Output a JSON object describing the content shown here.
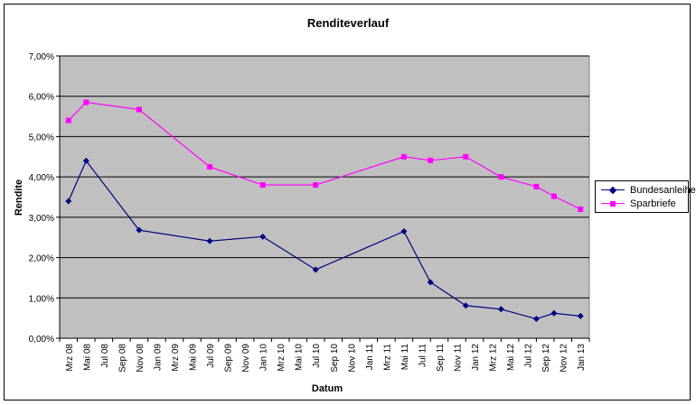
{
  "chart_data": {
    "type": "line",
    "title": "Renditeverlauf",
    "xlabel": "Datum",
    "ylabel": "Rendite",
    "ylim": [
      0,
      0.07
    ],
    "y_ticks": [
      "0,00%",
      "1,00%",
      "2,00%",
      "3,00%",
      "4,00%",
      "5,00%",
      "6,00%",
      "7,00%"
    ],
    "categories": [
      "Mrz 08",
      "Mai 08",
      "Jul 08",
      "Sep 08",
      "Nov 08",
      "Jan 09",
      "Mrz 09",
      "Mai 09",
      "Jul 09",
      "Sep 09",
      "Nov 09",
      "Jan 10",
      "Mrz 10",
      "Mai 10",
      "Jul 10",
      "Sep 10",
      "Nov 10",
      "Jan 11",
      "Mrz 11",
      "Mai 11",
      "Jul 11",
      "Sep 11",
      "Nov 11",
      "Jan 12",
      "Mrz 12",
      "Mai 12",
      "Jul 12",
      "Sep 12",
      "Nov 12",
      "Jan 13"
    ],
    "grid": true,
    "legend": "right",
    "plot_background": "#C0C0C0",
    "series": [
      {
        "name": "Bundesanleihen",
        "color": "#000080",
        "marker": "diamond",
        "points": [
          [
            "Mrz 08",
            0.034
          ],
          [
            "Mai 08",
            0.044
          ],
          [
            "Nov 08",
            0.0268
          ],
          [
            "Jul 09",
            0.0241
          ],
          [
            "Jan 10",
            0.0252
          ],
          [
            "Jul 10",
            0.017
          ],
          [
            "Mai 11",
            0.0265
          ],
          [
            "Aug 11",
            0.0139
          ],
          [
            "Dez 11",
            0.0081
          ],
          [
            "Apr 12",
            0.0072
          ],
          [
            "Aug 12",
            0.0048
          ],
          [
            "Okt 12",
            0.0062
          ],
          [
            "Jan 13",
            0.0055
          ]
        ]
      },
      {
        "name": "Sparbriefe",
        "color": "#FF00FF",
        "marker": "square",
        "points": [
          [
            "Mrz 08",
            0.054
          ],
          [
            "Mai 08",
            0.0585
          ],
          [
            "Nov 08",
            0.0567
          ],
          [
            "Jul 09",
            0.0425
          ],
          [
            "Jan 10",
            0.038
          ],
          [
            "Jul 10",
            0.038
          ],
          [
            "Mai 11",
            0.045
          ],
          [
            "Aug 11",
            0.0441
          ],
          [
            "Dez 11",
            0.045
          ],
          [
            "Apr 12",
            0.04
          ],
          [
            "Aug 12",
            0.0376
          ],
          [
            "Okt 12",
            0.0352
          ],
          [
            "Jan 13",
            0.032
          ]
        ]
      }
    ]
  }
}
